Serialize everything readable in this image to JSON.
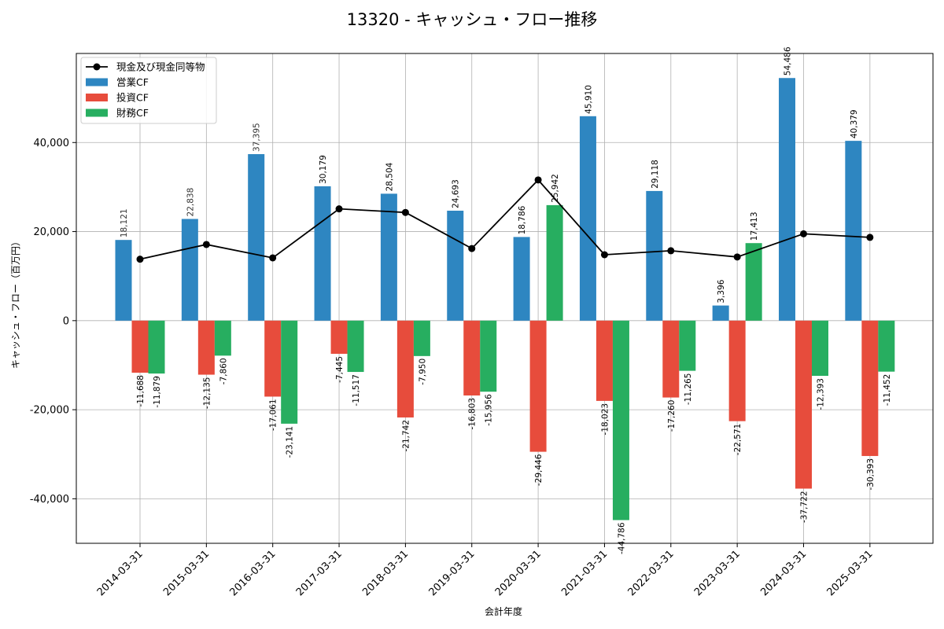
{
  "chart_data": {
    "type": "bar",
    "title": "13320 - キャッシュ・フロー推移",
    "xlabel": "会計年度",
    "ylabel": "キャッシュ・フロー（百万円）",
    "ylim": [
      -50000,
      60000
    ],
    "yticks": [
      -40000,
      -20000,
      0,
      20000,
      40000
    ],
    "ytick_labels": [
      "-40,000",
      "-20,000",
      "0",
      "20,000",
      "40,000"
    ],
    "grid": true,
    "legend_position": "top-left",
    "categories": [
      "2014-03-31",
      "2015-03-31",
      "2016-03-31",
      "2017-03-31",
      "2018-03-31",
      "2019-03-31",
      "2020-03-31",
      "2021-03-31",
      "2022-03-31",
      "2023-03-31",
      "2024-03-31",
      "2025-03-31"
    ],
    "series": [
      {
        "name": "営業CF",
        "type": "bar",
        "color": "#2e86c1",
        "values": [
          18121,
          22838,
          37395,
          30179,
          28504,
          24693,
          18786,
          45910,
          29118,
          3396,
          54486,
          40379
        ],
        "labels": [
          "18,121",
          "22,838",
          "37,395",
          "30,179",
          "28,504",
          "24,693",
          "18,786",
          "45,910",
          "29,118",
          "3,396",
          "54,486",
          "40,379"
        ]
      },
      {
        "name": "投資CF",
        "type": "bar",
        "color": "#e74c3c",
        "values": [
          -11688,
          -12135,
          -17061,
          -7445,
          -21742,
          -16803,
          -29446,
          -18023,
          -17260,
          -22571,
          -37722,
          -30393
        ],
        "labels": [
          "-11,688",
          "-12,135",
          "-17,061",
          "-7,445",
          "-21,742",
          "-16,803",
          "-29,446",
          "-18,023",
          "-17,260",
          "-22,571",
          "-37,722",
          "-30,393"
        ]
      },
      {
        "name": "財務CF",
        "type": "bar",
        "color": "#27ae60",
        "values": [
          -11879,
          -7860,
          -23141,
          -11517,
          -7950,
          -15956,
          25942,
          -44786,
          -11265,
          17413,
          -12393,
          -11452
        ],
        "labels": [
          "-11,879",
          "-7,860",
          "-23,141",
          "-11,517",
          "-7,950",
          "-15,956",
          "25,942",
          "-44,786",
          "-11,265",
          "17,413",
          "-12,393",
          "-11,452"
        ]
      },
      {
        "name": "現金及び現金同等物",
        "type": "line",
        "color": "#000000",
        "values": [
          13800,
          17100,
          14100,
          25100,
          24300,
          16200,
          31600,
          14800,
          15700,
          14300,
          19500,
          18700
        ]
      }
    ]
  }
}
